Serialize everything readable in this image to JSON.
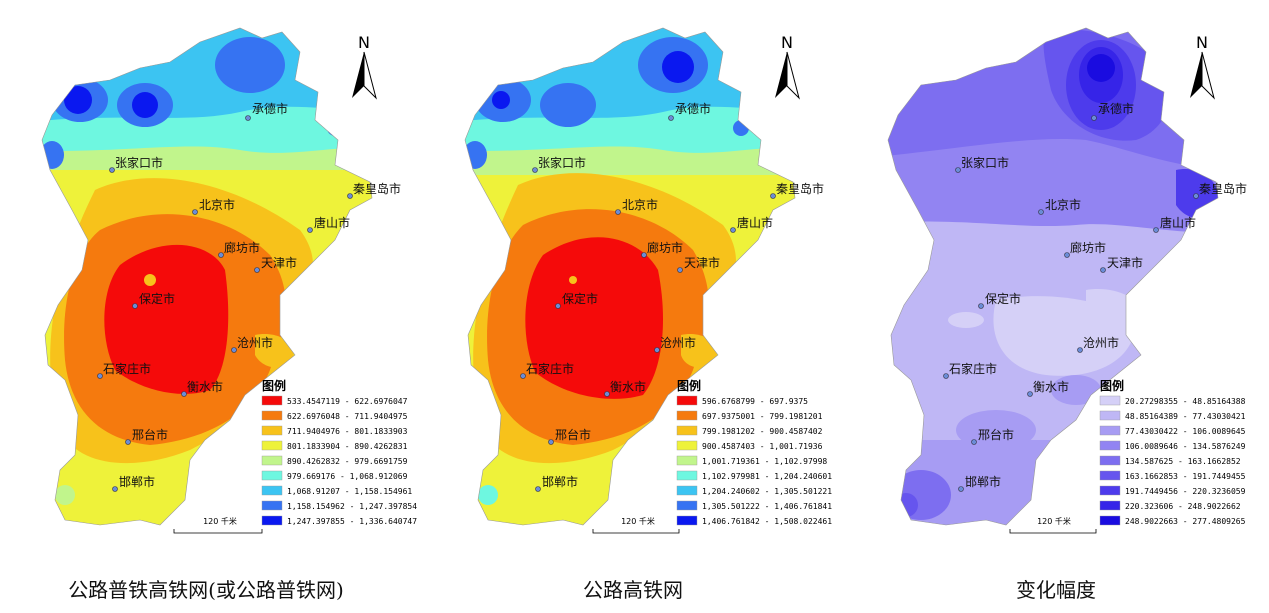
{
  "north_label": "N",
  "panels": [
    {
      "caption": "公路普铁高铁网(或公路普铁网)",
      "legend_title": "图例",
      "scale_label": "120 千米",
      "legend": [
        {
          "label": "533.4547119 - 622.6976047",
          "color": "#f50a0a"
        },
        {
          "label": "622.6976048 - 711.9404975",
          "color": "#f57a0e"
        },
        {
          "label": "711.9404976 - 801.1833903",
          "color": "#f7c21b"
        },
        {
          "label": "801.1833904 - 890.4262831",
          "color": "#eef23a"
        },
        {
          "label": "890.4262832 - 979.6691759",
          "color": "#c1f58c"
        },
        {
          "label": "979.669176 - 1,068.912069",
          "color": "#6ef7e0"
        },
        {
          "label": "1,068.91207 - 1,158.154961",
          "color": "#3cc4f2"
        },
        {
          "label": "1,158.154962 - 1,247.397854",
          "color": "#3673f2"
        },
        {
          "label": "1,247.397855 - 1,336.640747",
          "color": "#0a18f0"
        }
      ]
    },
    {
      "caption": "公路高铁网",
      "legend_title": "图例",
      "scale_label": "120 千米",
      "legend": [
        {
          "label": "596.6768799 - 697.9375",
          "color": "#f50a0a"
        },
        {
          "label": "697.9375001 - 799.1981201",
          "color": "#f57a0e"
        },
        {
          "label": "799.1981202 - 900.4587402",
          "color": "#f7c21b"
        },
        {
          "label": "900.4587403 - 1,001.71936",
          "color": "#eef23a"
        },
        {
          "label": "1,001.719361 - 1,102.97998",
          "color": "#c1f58c"
        },
        {
          "label": "1,102.979981 - 1,204.240601",
          "color": "#6ef7e0"
        },
        {
          "label": "1,204.240602 - 1,305.501221",
          "color": "#3cc4f2"
        },
        {
          "label": "1,305.501222 - 1,406.761841",
          "color": "#3673f2"
        },
        {
          "label": "1,406.761842 - 1,508.022461",
          "color": "#0a18f0"
        }
      ]
    },
    {
      "caption": "变化幅度",
      "legend_title": "图例",
      "scale_label": "120 千米",
      "legend": [
        {
          "label": "20.27298355 - 48.85164388",
          "color": "#d5d0f7"
        },
        {
          "label": "48.85164389 - 77.43030421",
          "color": "#bfb7f5"
        },
        {
          "label": "77.43030422 - 106.0089645",
          "color": "#a79cf3"
        },
        {
          "label": "106.0089646 - 134.5876249",
          "color": "#9284f2"
        },
        {
          "label": "134.587625 - 163.1662852",
          "color": "#7d6ef0"
        },
        {
          "label": "163.1662853 - 191.7449455",
          "color": "#6655ee"
        },
        {
          "label": "191.7449456 - 220.3236059",
          "color": "#4d3bec"
        },
        {
          "label": "220.323606 - 248.9022662",
          "color": "#3624e8"
        },
        {
          "label": "248.9022663 - 277.4809265",
          "color": "#1a0ce0"
        }
      ]
    }
  ],
  "cities": [
    {
      "name": "承德市"
    },
    {
      "name": "张家口市"
    },
    {
      "name": "秦皇岛市"
    },
    {
      "name": "北京市"
    },
    {
      "name": "唐山市"
    },
    {
      "name": "廊坊市"
    },
    {
      "name": "天津市"
    },
    {
      "name": "保定市"
    },
    {
      "name": "沧州市"
    },
    {
      "name": "石家庄市"
    },
    {
      "name": "衡水市"
    },
    {
      "name": "邢台市"
    },
    {
      "name": "邯郸市"
    }
  ]
}
